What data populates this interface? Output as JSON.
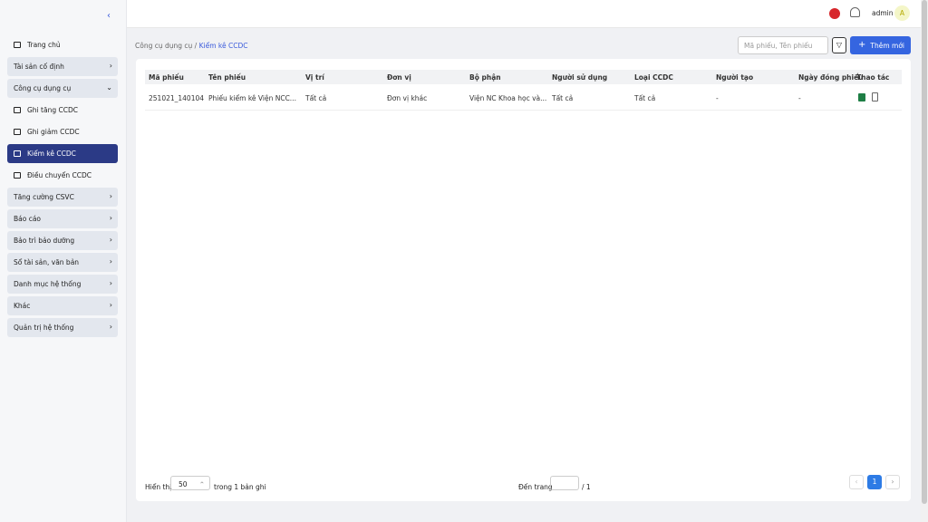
{
  "header": {
    "user": "admin",
    "avatar": "A"
  },
  "sidebar": {
    "items": [
      {
        "label": "Trang chủ",
        "kind": "link"
      },
      {
        "label": "Tài sản cố định",
        "kind": "group"
      },
      {
        "label": "Công cụ dụng cụ",
        "kind": "group",
        "open": true
      },
      {
        "label": "Ghi tăng CCDC",
        "kind": "link"
      },
      {
        "label": "Ghi giảm CCDC",
        "kind": "link"
      },
      {
        "label": "Kiểm kê CCDC",
        "kind": "link",
        "active": true
      },
      {
        "label": "Điều chuyển CCDC",
        "kind": "link"
      },
      {
        "label": "Tăng cường CSVC",
        "kind": "group"
      },
      {
        "label": "Báo cáo",
        "kind": "group"
      },
      {
        "label": "Bảo trì bảo dưỡng",
        "kind": "group"
      },
      {
        "label": "Sổ tài sản, văn bản",
        "kind": "group"
      },
      {
        "label": "Danh mục hệ thống",
        "kind": "group"
      },
      {
        "label": "Khác",
        "kind": "group"
      },
      {
        "label": "Quản trị hệ thống",
        "kind": "group"
      }
    ]
  },
  "breadcrumb": {
    "parent": "Công cụ dụng cụ",
    "separator": "/",
    "current": "Kiểm kê CCDC"
  },
  "toolbar": {
    "search_placeholder": "Mã phiếu, Tên phiếu",
    "add_button": "Thêm mới"
  },
  "table": {
    "columns": [
      "Mã phiếu",
      "Tên phiếu",
      "Vị trí",
      "Đơn vị",
      "Bộ phận",
      "Người sử dụng",
      "Loại CCDC",
      "Người tạo",
      "Ngày đóng phiếu",
      "Thao tác"
    ],
    "rows": [
      [
        "251021_140104",
        "Phiếu kiểm kê Viện NCC...",
        "Tất cả",
        "Đơn vị khác",
        "Viện NC Khoa học và...",
        "Tất cả",
        "Tất cả",
        "-",
        "-"
      ]
    ]
  },
  "footer": {
    "show_label": "Hiển thị",
    "page_size": "50",
    "total": "trong 1 bản ghi",
    "goto_label": "Đến trang",
    "page_count": "/ 1",
    "current_page": "1"
  }
}
